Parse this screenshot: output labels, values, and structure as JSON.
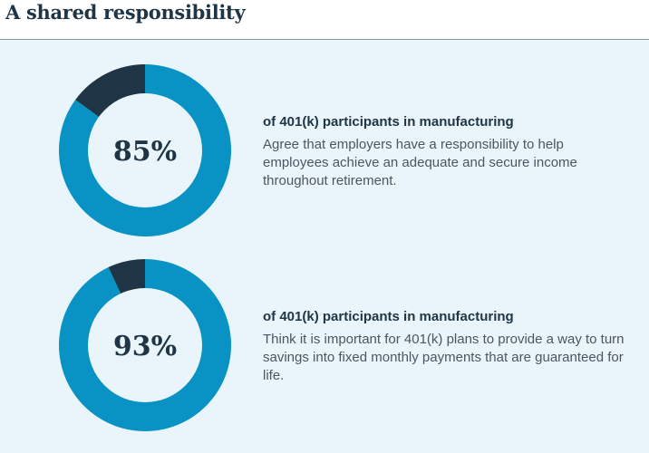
{
  "title": "A shared responsibility",
  "colors": {
    "filled": "#0893c4",
    "remainder": "#1f3444",
    "center": "#eaf5fb"
  },
  "chart_data": [
    {
      "type": "pie",
      "variant": "donut",
      "values": [
        85,
        15
      ],
      "label": "85%",
      "heading": "of 401(k) participants in manufacturing",
      "description": "Agree that employers have a responsibility to help employees achieve an adequate and secure income throughout retirement."
    },
    {
      "type": "pie",
      "variant": "donut",
      "values": [
        93,
        7
      ],
      "label": "93%",
      "heading": "of 401(k) participants in manufacturing",
      "description": "Think it is important for 401(k) plans to provide a way to turn savings into fixed monthly payments that are guaranteed for life."
    }
  ]
}
